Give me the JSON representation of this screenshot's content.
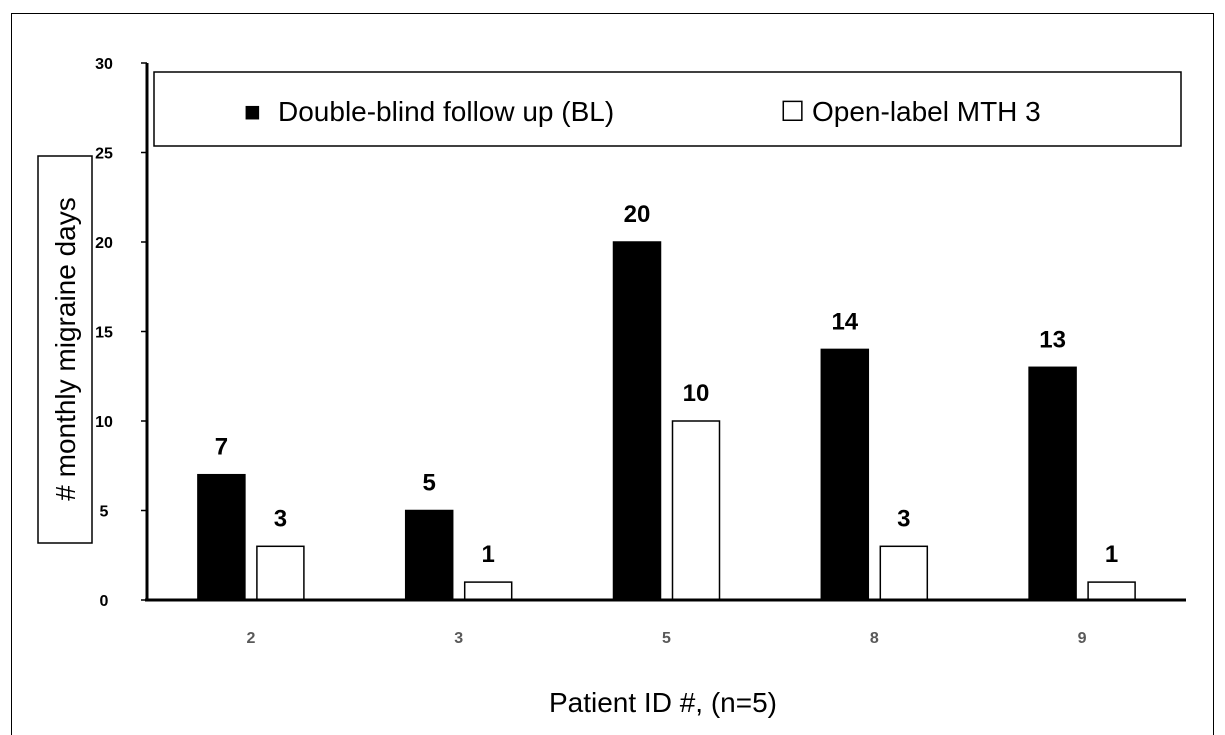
{
  "chart_data": {
    "type": "bar",
    "categories": [
      "2",
      "3",
      "5",
      "8",
      "9"
    ],
    "series": [
      {
        "name": "Double-blind follow up (BL)",
        "values": [
          7,
          5,
          20,
          14,
          13
        ],
        "color": "#000000"
      },
      {
        "name": "Open-label MTH 3",
        "values": [
          3,
          1,
          10,
          3,
          1
        ],
        "color": "#ffffff"
      }
    ],
    "title": "",
    "xlabel": "Patient ID #, (n=5)",
    "ylabel": "# monthly migraine days",
    "ylim": [
      0,
      30
    ],
    "yticks": [
      0,
      5,
      10,
      15,
      20,
      25,
      30
    ],
    "grid": false,
    "legend_position": "top",
    "legend_marker": {
      "filled": "■",
      "empty": "☐"
    }
  }
}
